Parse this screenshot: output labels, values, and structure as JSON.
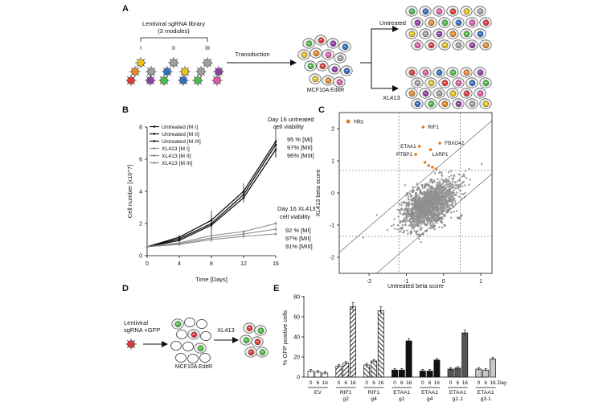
{
  "panels": {
    "A": "A",
    "B": "B",
    "C": "C",
    "D": "D",
    "E": "E"
  },
  "panel_a": {
    "library_title": "Lentiviral sgRNA library",
    "library_subtitle": "(3 modules)",
    "modules": [
      "I",
      "II",
      "III"
    ],
    "transduction": "Transduction",
    "cells_label": "MCF10A EditR",
    "untreated": "Untreated",
    "treated": "XL413"
  },
  "panel_d": {
    "lenti_line1": "Lentiviral",
    "lenti_line2": "sgRNA +GFP",
    "cells_label": "MCF10A EditR",
    "treated": "XL413"
  },
  "chart_data": [
    {
      "id": "B",
      "type": "line",
      "xlabel": "Time [Days]",
      "ylabel": "Cell number [x10^7]",
      "x": [
        0,
        4,
        8,
        12,
        16
      ],
      "xlim": [
        0,
        16
      ],
      "ylim": [
        0,
        8
      ],
      "xticks": [
        "0",
        "4",
        "8",
        "12",
        "16"
      ],
      "yticks": [
        "0",
        "2",
        "4",
        "6",
        "8"
      ],
      "series": [
        {
          "name": "Untreated [M I]",
          "color": "#111111",
          "values": [
            0.55,
            1.15,
            2.2,
            4.0,
            7.1
          ],
          "err": [
            0.05,
            0.15,
            0.3,
            0.5,
            1.0
          ]
        },
        {
          "name": "Untreated [M II]",
          "color": "#111111",
          "values": [
            0.55,
            1.05,
            2.0,
            3.8,
            6.9
          ],
          "err": [
            0.05,
            0.15,
            0.8,
            0.3,
            0.4
          ]
        },
        {
          "name": "Untreated [M III]",
          "color": "#111111",
          "values": [
            0.55,
            0.95,
            1.9,
            3.6,
            6.6
          ],
          "err": [
            0.05,
            0.15,
            0.3,
            0.3,
            0.5
          ]
        },
        {
          "name": "XL413 [M I]",
          "color": "#888888",
          "values": [
            0.55,
            0.8,
            1.25,
            1.5,
            2.0
          ],
          "err": [
            0.05,
            0.1,
            0.1,
            0.1,
            0.15
          ]
        },
        {
          "name": "XL413 [M II]",
          "color": "#888888",
          "values": [
            0.55,
            0.75,
            1.1,
            1.35,
            1.65
          ],
          "err": [
            0.05,
            0.1,
            0.25,
            0.1,
            0.15
          ]
        },
        {
          "name": "XL413 [M III]",
          "color": "#888888",
          "values": [
            0.55,
            0.7,
            1.0,
            1.2,
            1.35
          ],
          "err": [
            0.05,
            0.1,
            0.1,
            0.1,
            0.1
          ]
        }
      ],
      "annotation_untreated": {
        "title1": "Day 16 untreated",
        "title2": "cell viability",
        "values": [
          "95 % [MI]",
          "97% [MII]",
          "96% [MIII]"
        ]
      },
      "annotation_xl413": {
        "title1": "Day 16 XL413",
        "title2": "cell viability",
        "values": [
          "92 % [MI]",
          "97% [MII]",
          "91% [MIII]"
        ]
      }
    },
    {
      "id": "C",
      "type": "scatter",
      "xlabel": "Untreated beta score",
      "ylabel": "XL413 beta score",
      "xlim": [
        -2.8,
        1.3
      ],
      "ylim": [
        -2.5,
        2.5
      ],
      "xticks": [
        -2,
        -1,
        0,
        1
      ],
      "yticks": [
        -2,
        -1,
        0,
        1,
        2
      ],
      "xtick_labels": [
        "-2",
        "-1",
        "0",
        "1"
      ],
      "ytick_labels": [
        "-2",
        "-1",
        "0",
        "1",
        "2"
      ],
      "vlines": [
        -1.2,
        0.45
      ],
      "hlines": [
        0.7,
        -1.35
      ],
      "legend": "Hits",
      "hit_color": "#e07b20",
      "cloud_color": "#9a9a9a",
      "hits": [
        {
          "label": "RIF1",
          "x": -0.55,
          "y": 2.05
        },
        {
          "label": "FBXO42",
          "x": -0.1,
          "y": 1.55
        },
        {
          "label": "ETAA1",
          "x": -0.65,
          "y": 1.45
        },
        {
          "label": "LARP1",
          "x": -0.35,
          "y": 1.35
        },
        {
          "label": "PTBP1",
          "x": -0.75,
          "y": 1.2
        },
        {
          "label": "",
          "x": -0.5,
          "y": 0.95
        },
        {
          "label": "",
          "x": -0.4,
          "y": 0.85
        },
        {
          "label": "",
          "x": -0.3,
          "y": 0.8
        },
        {
          "label": "",
          "x": -0.2,
          "y": 0.75
        }
      ]
    },
    {
      "id": "E",
      "type": "bar",
      "ylabel": "% GFP positive cells",
      "ylim": [
        0,
        80
      ],
      "yticks": [
        "0",
        "20",
        "40",
        "60",
        "80"
      ],
      "day_label": "Day",
      "groups": [
        {
          "name": "EV",
          "sub": "",
          "pattern": "white",
          "values": [
            6,
            5,
            4
          ],
          "days": [
            "0",
            "6",
            "16"
          ]
        },
        {
          "name": "RIF1",
          "sub": "g2",
          "pattern": "stripe",
          "values": [
            11,
            14,
            70
          ],
          "days": [
            "0",
            "6",
            "16"
          ]
        },
        {
          "name": "RIF1",
          "sub": "g4",
          "pattern": "stripe2",
          "values": [
            12,
            16,
            66
          ],
          "days": [
            "0",
            "6",
            "16"
          ]
        },
        {
          "name": "ETAA1",
          "sub": "g1",
          "pattern": "black",
          "values": [
            7,
            7,
            36
          ],
          "days": [
            "0",
            "6",
            "16"
          ]
        },
        {
          "name": "ETAA1",
          "sub": "g4",
          "pattern": "black",
          "values": [
            6,
            6,
            17
          ],
          "days": [
            "0",
            "6",
            "16"
          ]
        },
        {
          "name": "ETAA1",
          "sub": "g1.1",
          "pattern": "dgray",
          "values": [
            8,
            9,
            44
          ],
          "days": [
            "0",
            "6",
            "16"
          ]
        },
        {
          "name": "ETAA1",
          "sub": "g3.1",
          "pattern": "lgray",
          "values": [
            8,
            7,
            18
          ],
          "days": [
            "0",
            "6",
            "16"
          ]
        }
      ]
    }
  ],
  "colors": {
    "cell_green": "#4cbb47",
    "cell_red": "#e03a3a",
    "cell_purple": "#8e3fa8",
    "cell_blue": "#2f6fc4",
    "cell_yellow": "#e8c21a",
    "cell_orange": "#e8862a",
    "cell_pink": "#e05aa8",
    "cell_gray": "#9e9e9e"
  }
}
